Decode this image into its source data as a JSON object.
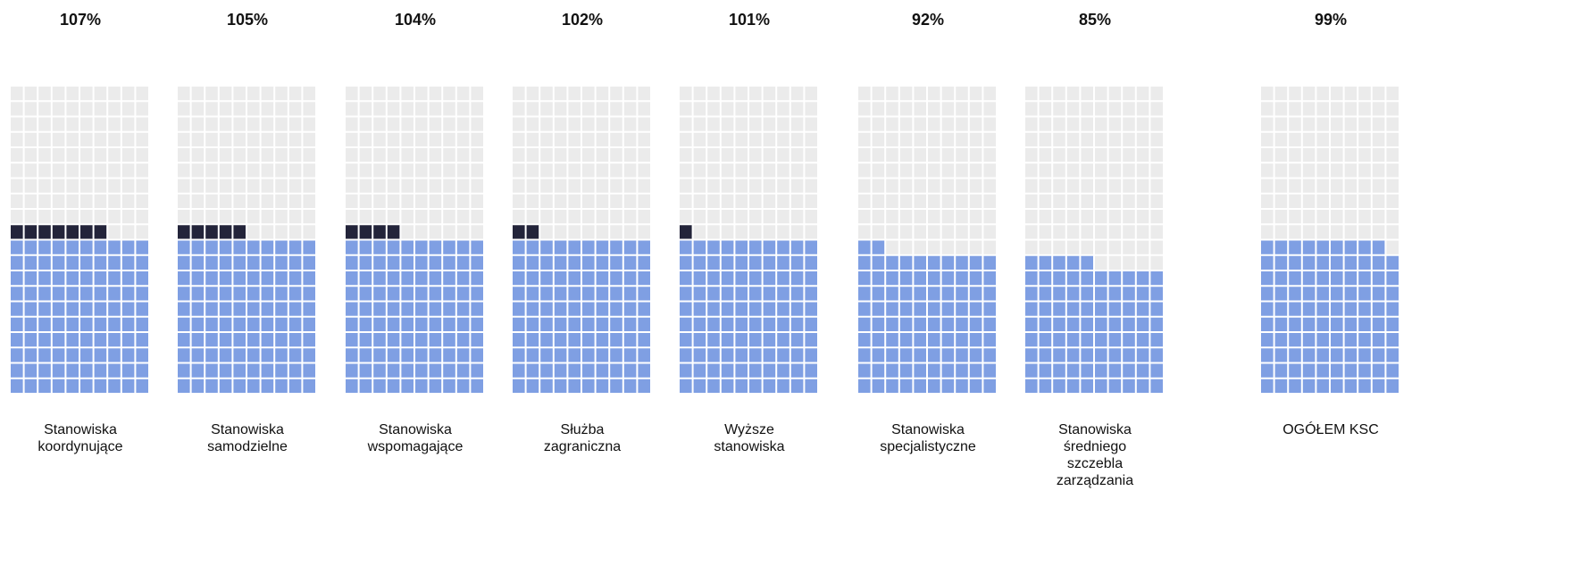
{
  "chart_data": {
    "type": "waffle",
    "categories": [
      "Stanowiska\nkoordynujące",
      "Stanowiska\nsamodzielne",
      "Stanowiska\nwspomagające",
      "Służba\nzagraniczna",
      "Wyższe\nstanowiska",
      "Stanowiska\nspecjalistyczne",
      "Stanowiska\nśredniego\nszczebla\nzarządzania",
      "OGÓŁEM KSC"
    ],
    "values": [
      107,
      105,
      104,
      102,
      101,
      92,
      85,
      99
    ],
    "value_labels": [
      "107%",
      "105%",
      "104%",
      "102%",
      "101%",
      "92%",
      "85%",
      "99%"
    ],
    "color": "#7f9fe3",
    "overflow_color": "#23243a",
    "empty_color": "#ebebeb"
  }
}
